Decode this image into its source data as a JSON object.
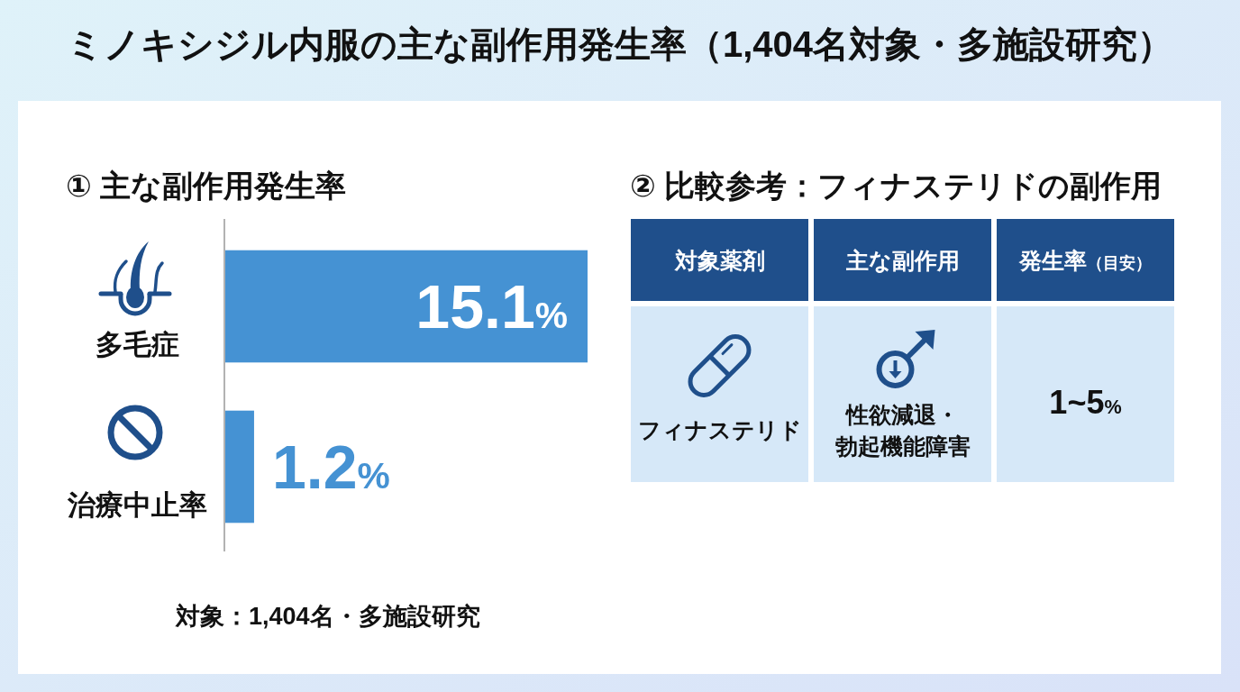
{
  "chart_data": [
    {
      "type": "bar",
      "orientation": "horizontal",
      "title": "ミノキシジル内服の主な副作用発生率（1,404名対象・多施設研究）",
      "subtitle": "① 主な副作用発生率",
      "categories": [
        "多毛症",
        "治療中止率"
      ],
      "values": [
        15.1,
        1.2
      ],
      "value_labels": [
        "15.1%",
        "1.2%"
      ],
      "color": "#4592d3",
      "annotations": [
        "対象：1,404名・多施設研究"
      ]
    },
    {
      "type": "other",
      "title": "② 比較参考：フィナステリドの副作用",
      "categories": [
        "対象薬剤",
        "主な副作用",
        "発生率（目安）"
      ],
      "annotations": [
        "フィナステリド",
        "性欲減退・勃起機能障害",
        "1~5%"
      ]
    }
  ]
}
